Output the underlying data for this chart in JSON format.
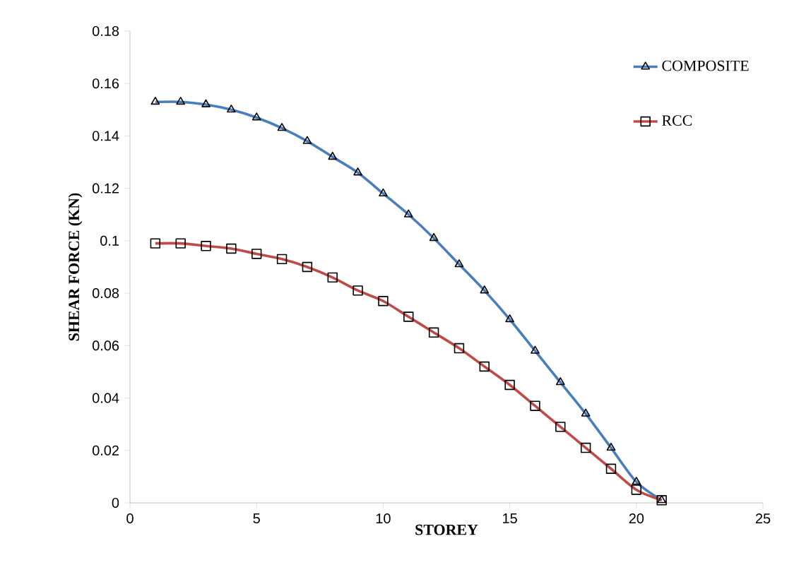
{
  "chart_data": {
    "type": "line",
    "xlabel": "STOREY",
    "ylabel": "SHEAR FORCE (KN)",
    "x": [
      1,
      2,
      3,
      4,
      5,
      6,
      7,
      8,
      9,
      10,
      11,
      12,
      13,
      14,
      15,
      16,
      17,
      18,
      19,
      20,
      21
    ],
    "series": [
      {
        "name": "COMPOSITE",
        "color": "#4a7ebb",
        "marker": "triangle",
        "values": [
          0.153,
          0.153,
          0.152,
          0.15,
          0.147,
          0.143,
          0.138,
          0.132,
          0.126,
          0.118,
          0.11,
          0.101,
          0.091,
          0.081,
          0.07,
          0.058,
          0.046,
          0.034,
          0.021,
          0.008,
          0.001
        ]
      },
      {
        "name": "RCC",
        "color": "#be4b48",
        "marker": "square",
        "values": [
          0.099,
          0.099,
          0.098,
          0.097,
          0.095,
          0.093,
          0.09,
          0.086,
          0.081,
          0.077,
          0.071,
          0.065,
          0.059,
          0.052,
          0.045,
          0.037,
          0.029,
          0.021,
          0.013,
          0.005,
          0.001
        ]
      }
    ],
    "xlim": [
      0,
      25
    ],
    "ylim": [
      0,
      0.18
    ],
    "xticks": [
      0,
      5,
      10,
      15,
      20,
      25
    ],
    "yticks": [
      0,
      0.02,
      0.04,
      0.06,
      0.08,
      0.1,
      0.12,
      0.14,
      0.16,
      0.18
    ],
    "grid": false,
    "legend": "top right",
    "line_style": "solid"
  }
}
